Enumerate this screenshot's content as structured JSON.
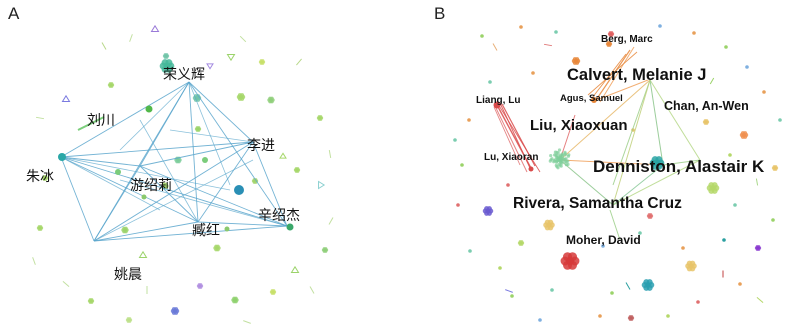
{
  "panels": [
    {
      "letter": "A",
      "nodes": [
        {
          "id": "rong",
          "label": "荣义辉"
        },
        {
          "id": "liuchuan",
          "label": "刘川"
        },
        {
          "id": "lijin",
          "label": "李进"
        },
        {
          "id": "zhubing",
          "label": "朱冰"
        },
        {
          "id": "you",
          "label": "游绍莉"
        },
        {
          "id": "xin",
          "label": "辛绍杰"
        },
        {
          "id": "zang",
          "label": "臧红"
        },
        {
          "id": "yao",
          "label": "姚晨"
        }
      ],
      "edge_color": "#5aa6cc"
    },
    {
      "letter": "B",
      "nodes": [
        {
          "id": "berg",
          "label": "Berg, Marc"
        },
        {
          "id": "calvert",
          "label": "Calvert, Melanie J"
        },
        {
          "id": "lianglu",
          "label": "Liang, Lu"
        },
        {
          "id": "agus",
          "label": "Agus, Samuel"
        },
        {
          "id": "chan",
          "label": "Chan, An-Wen"
        },
        {
          "id": "liux",
          "label": "Liu, Xiaoxuan"
        },
        {
          "id": "lux",
          "label": "Lu, Xiaoran"
        },
        {
          "id": "denniston",
          "label": "Denniston, Alastair K"
        },
        {
          "id": "rivera",
          "label": "Rivera, Samantha Cruz"
        },
        {
          "id": "moher",
          "label": "Moher, David"
        }
      ]
    }
  ]
}
